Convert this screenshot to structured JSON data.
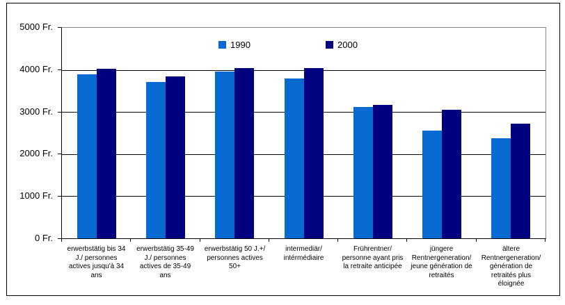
{
  "chart_data": {
    "type": "bar",
    "title": "",
    "currency_suffix": "Fr.",
    "ylim": [
      0,
      5000
    ],
    "y_tick_values": [
      0,
      1000,
      2000,
      3000,
      4000,
      5000
    ],
    "y_tick_labels": [
      "0 Fr.",
      "1000 Fr.",
      "2000 Fr.",
      "3000 Fr.",
      "4000 Fr.",
      "5000 Fr."
    ],
    "grid": true,
    "legend_position": "top-center",
    "categories": [
      "erwerbstätig bis 34 J./ personnes actives jusqu'à 34 ans",
      "erwerbstätig 35-49 J./ personnes actives de 35-49 ans",
      "erwerbstätig 50 J.+/ personnes actives 50+",
      "intermediär/ intérmédiaire",
      "Frührentner/ personne ayant pris la retraite anticipée",
      "jüngere Rentnergeneration/ jeune génération de retraités",
      "ältere Rentnergeneration/ génération de retraités plus éloignée"
    ],
    "category_label_lines": [
      [
        "erwerbstätig bis 34",
        "J./ personnes",
        "actives jusqu'à 34",
        "ans"
      ],
      [
        "erwerbstätig 35-49",
        "J./ personnes",
        "actives de 35-49",
        "ans"
      ],
      [
        "erwerbstätig 50 J.+/",
        "personnes actives",
        "50+"
      ],
      [
        "intermediär/",
        "intérmédiaire"
      ],
      [
        "Frührentner/",
        "personne ayant pris",
        "la retraite anticipée"
      ],
      [
        "jüngere",
        "Rentnergeneration/",
        "jeune génération de",
        "retraités"
      ],
      [
        "ältere",
        "Rentnergeneration/",
        "génération de",
        "retraités plus",
        "éloignée"
      ]
    ],
    "series": [
      {
        "name": "1990",
        "color": "#0769d2",
        "values": [
          3900,
          3710,
          3960,
          3800,
          3120,
          2560,
          2370
        ]
      },
      {
        "name": "2000",
        "color": "#010180",
        "values": [
          4030,
          3850,
          4040,
          4040,
          3170,
          3050,
          2720
        ]
      }
    ],
    "colors": {
      "axis": "#000000",
      "plot_border": "#848484",
      "gridline": "#000000",
      "background": "#ffffff"
    }
  }
}
